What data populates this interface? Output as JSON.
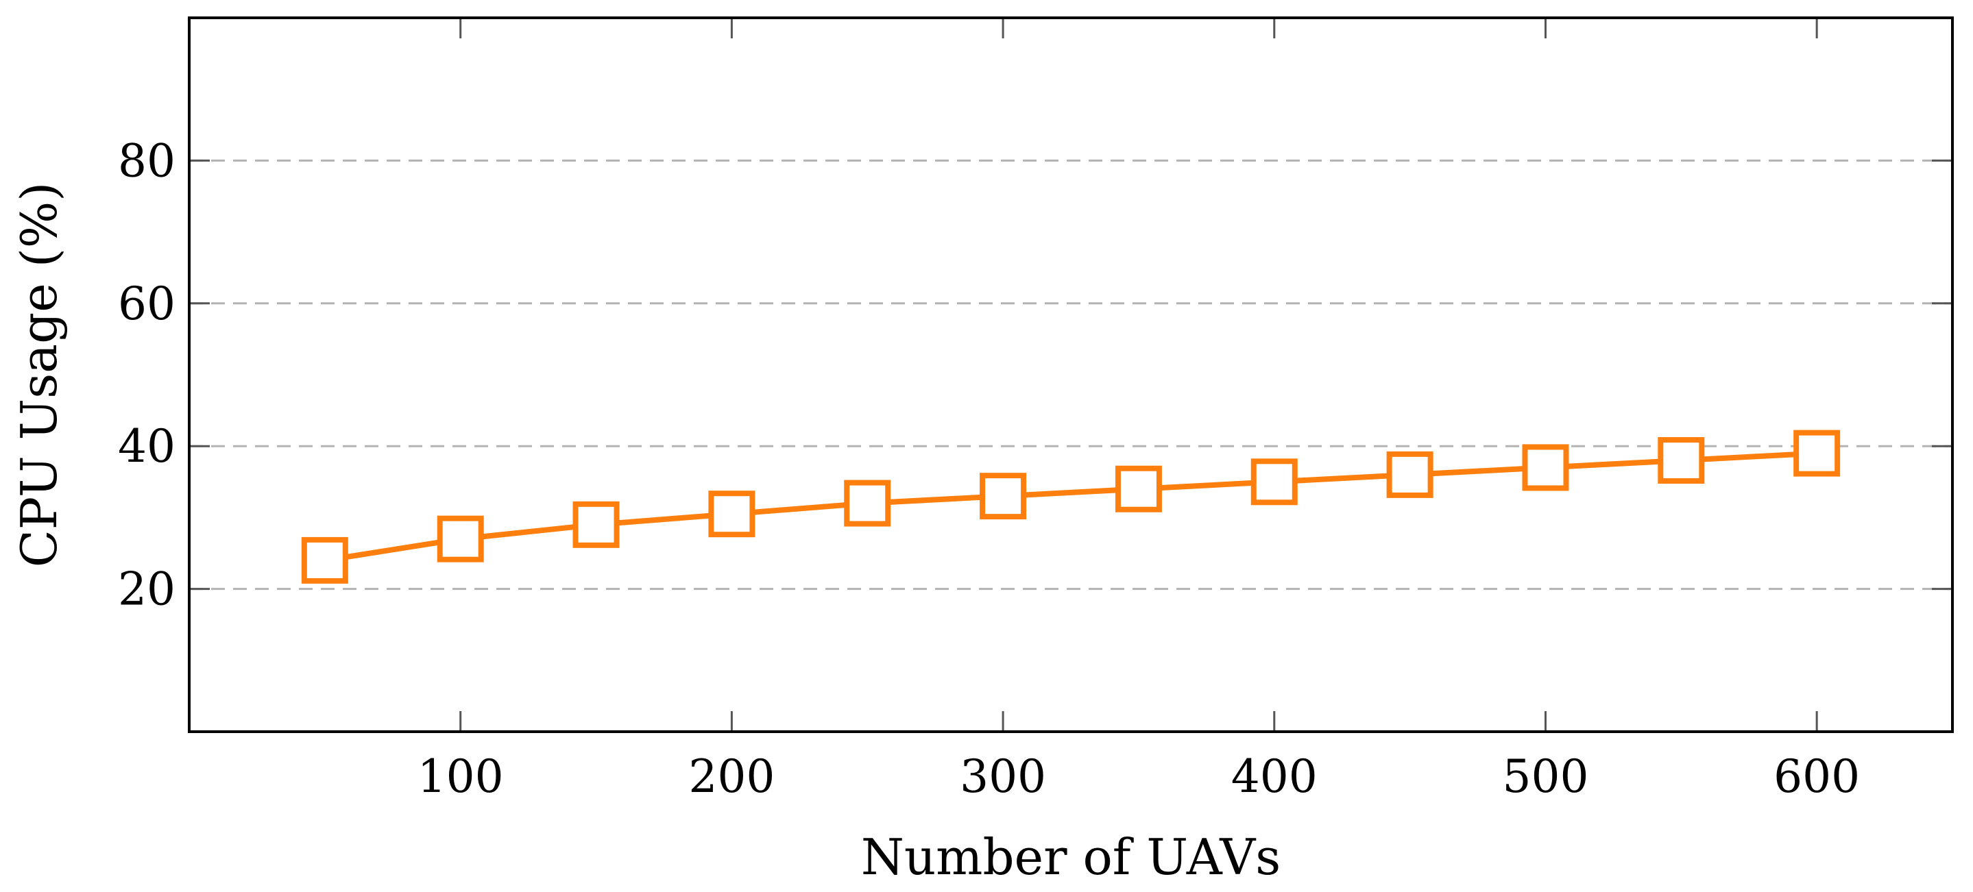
{
  "chart_data": {
    "type": "line",
    "title": "",
    "xlabel": "Number of UAVs",
    "ylabel": "CPU Usage (%)",
    "xlim": [
      0,
      650
    ],
    "ylim": [
      0,
      100
    ],
    "x_ticks": [
      100,
      200,
      300,
      400,
      500,
      600
    ],
    "y_ticks": [
      20,
      40,
      60,
      80
    ],
    "grid": {
      "y": true,
      "x": false,
      "style": "dashed"
    },
    "legend": "none",
    "series": [
      {
        "color": "#ff7f0e",
        "marker": "open-square",
        "x": [
          50,
          100,
          150,
          200,
          250,
          300,
          350,
          400,
          450,
          500,
          550,
          600
        ],
        "y": [
          24,
          27,
          29,
          30.5,
          32,
          33,
          34,
          35,
          36,
          37,
          38,
          39
        ]
      }
    ]
  }
}
